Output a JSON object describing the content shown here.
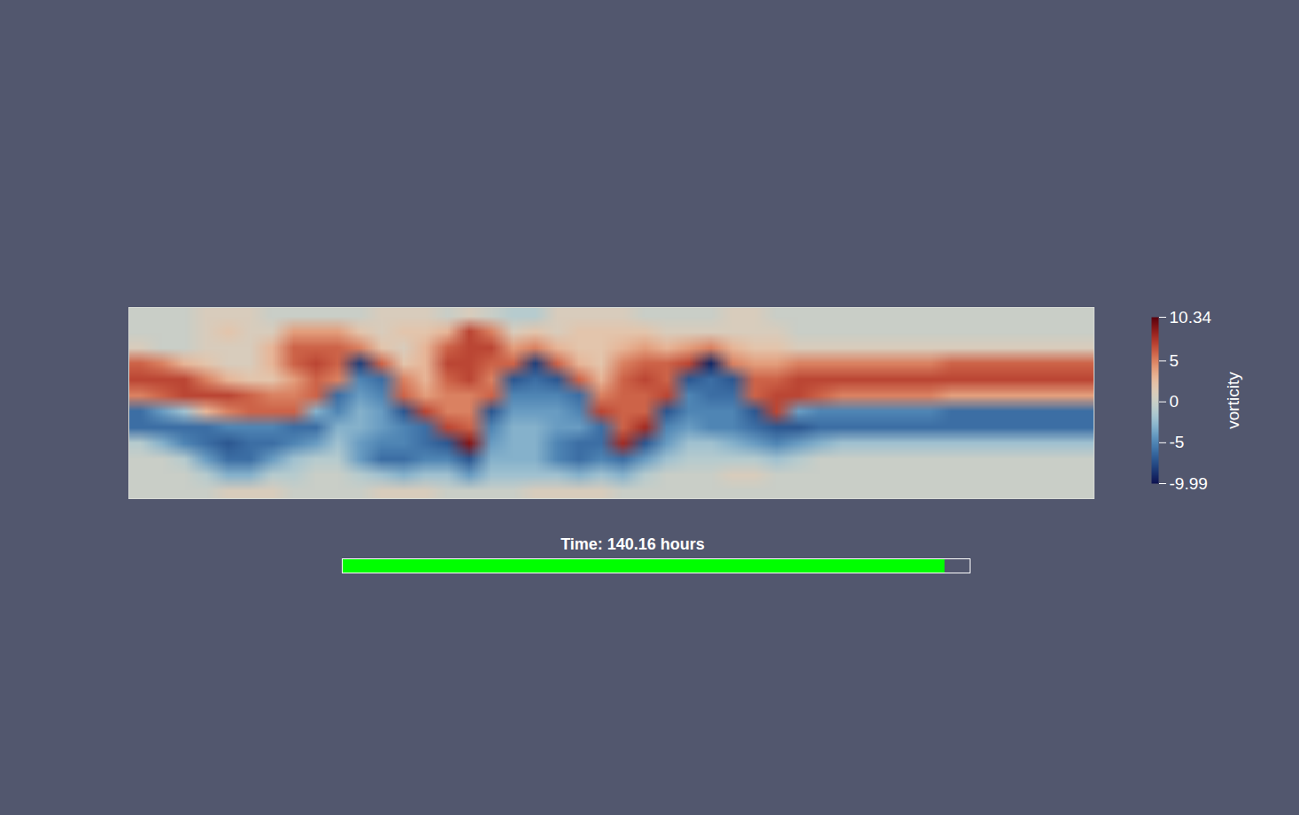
{
  "chart_data": {
    "type": "heatmap",
    "tick_labels": false,
    "annotations": [
      "Time: 140.16 hours"
    ],
    "colorbar": {
      "label": "vorticity",
      "range": [
        -9.99,
        10.34
      ],
      "ticks": [
        10.34,
        5,
        0,
        -5,
        -9.99
      ]
    },
    "progress": {
      "value": 0.96,
      "range": [
        0,
        1
      ]
    },
    "cells": [
      [
        0,
        0,
        0,
        1,
        1,
        1,
        0,
        0,
        0,
        0,
        0,
        1,
        1,
        1,
        0,
        1,
        0,
        -1,
        -1,
        1,
        1,
        1,
        1,
        0,
        0,
        0,
        0,
        1,
        1,
        0,
        0,
        0,
        0,
        0,
        0,
        0,
        0,
        0,
        0,
        0,
        0,
        0,
        0,
        0
      ],
      [
        0,
        0,
        0,
        1,
        2,
        1,
        1,
        4,
        4,
        4,
        2,
        1,
        2,
        2,
        3,
        7,
        5,
        1,
        2,
        1,
        2,
        2,
        2,
        2,
        1,
        1,
        1,
        1,
        1,
        1,
        0,
        0,
        0,
        0,
        0,
        0,
        0,
        0,
        0,
        0,
        0,
        0,
        0,
        0
      ],
      [
        1,
        0,
        0,
        1,
        1,
        1,
        3,
        6,
        6,
        6,
        5,
        2,
        1,
        3,
        6,
        7,
        7,
        4,
        5,
        3,
        2,
        2,
        3,
        4,
        3,
        4,
        5,
        3,
        2,
        2,
        1,
        1,
        1,
        1,
        1,
        1,
        1,
        1,
        1,
        1,
        1,
        1,
        1,
        1
      ],
      [
        6,
        5,
        3,
        2,
        1,
        1,
        3,
        6,
        7,
        6,
        -8,
        6,
        2,
        3,
        7,
        7,
        6,
        6,
        -8,
        6,
        3,
        2,
        5,
        6,
        6,
        7,
        -9,
        5,
        4,
        4,
        5,
        5,
        5,
        5,
        5,
        5,
        5,
        6,
        6,
        6,
        6,
        6,
        6,
        6
      ],
      [
        7,
        7,
        7,
        5,
        3,
        2,
        2,
        4,
        6,
        5,
        -5,
        -6,
        5,
        3,
        6,
        7,
        5,
        -7,
        -6,
        -7,
        6,
        3,
        6,
        7,
        6,
        -7,
        -6,
        -7,
        6,
        6,
        7,
        7,
        7,
        7,
        7,
        7,
        7,
        7,
        7,
        7,
        7,
        7,
        7,
        7
      ],
      [
        5,
        6,
        7,
        7,
        7,
        6,
        5,
        5,
        6,
        -6,
        -4,
        -5,
        6,
        4,
        5,
        5,
        6,
        -5,
        -5,
        -5,
        -6,
        5,
        6,
        6,
        7,
        -5,
        -6,
        -6,
        6,
        7,
        7,
        6,
        5,
        5,
        5,
        5,
        5,
        4,
        4,
        4,
        4,
        4,
        4,
        4
      ],
      [
        -6,
        -4,
        -2,
        3,
        5,
        6,
        6,
        6,
        -3,
        -5,
        -3,
        -4,
        -7,
        7,
        5,
        5,
        -7,
        -4,
        -4,
        -4,
        -5,
        7,
        6,
        6,
        -7,
        -5,
        -5,
        -5,
        -7,
        7,
        -4,
        -5,
        -5,
        -5,
        -5,
        -5,
        -5,
        -6,
        -6,
        -6,
        -6,
        -6,
        -6,
        -6
      ],
      [
        -6,
        -6,
        -6,
        -6,
        -5,
        -5,
        -5,
        -6,
        -6,
        -3,
        -3,
        -4,
        -5,
        -6,
        7,
        6,
        -5,
        -3,
        -3,
        -4,
        -4,
        -6,
        6,
        8,
        -5,
        -4,
        -5,
        -5,
        -6,
        -7,
        -7,
        -6,
        -6,
        -6,
        -6,
        -6,
        -6,
        -6,
        -6,
        -6,
        -6,
        -6,
        -6,
        -6
      ],
      [
        -1,
        -3,
        -5,
        -6,
        -7,
        -6,
        -6,
        -5,
        -4,
        -2,
        -4,
        -5,
        -5,
        -6,
        -7,
        9,
        -4,
        -3,
        -3,
        -5,
        -6,
        -6,
        8,
        -7,
        -4,
        -2,
        -2,
        -3,
        -4,
        -5,
        -4,
        -3,
        -2,
        -2,
        -2,
        -2,
        -2,
        -2,
        -2,
        -2,
        -2,
        -2,
        -2,
        -2
      ],
      [
        0,
        0,
        -1,
        -4,
        -6,
        -6,
        -4,
        -2,
        -1,
        -1,
        -4,
        -6,
        -6,
        -5,
        -5,
        -7,
        -3,
        -3,
        -3,
        -5,
        -6,
        -5,
        -6,
        -4,
        -2,
        -1,
        -1,
        -1,
        -1,
        -2,
        -1,
        0,
        0,
        0,
        0,
        0,
        0,
        0,
        0,
        0,
        0,
        0,
        0,
        0
      ],
      [
        0,
        0,
        0,
        -1,
        -3,
        -3,
        -1,
        -1,
        0,
        0,
        -1,
        -2,
        -3,
        -2,
        -2,
        -4,
        -2,
        -2,
        -2,
        -2,
        -3,
        -2,
        -3,
        -1,
        0,
        0,
        0,
        1,
        1,
        0,
        0,
        0,
        0,
        0,
        0,
        0,
        0,
        0,
        0,
        0,
        0,
        0,
        0,
        0
      ],
      [
        0,
        0,
        0,
        0,
        1,
        1,
        1,
        0,
        0,
        0,
        0,
        1,
        1,
        1,
        0,
        0,
        0,
        0,
        1,
        1,
        1,
        1,
        0,
        0,
        0,
        0,
        0,
        0,
        0,
        0,
        0,
        0,
        0,
        0,
        0,
        0,
        0,
        0,
        0,
        0,
        0,
        0,
        0,
        0
      ]
    ]
  }
}
